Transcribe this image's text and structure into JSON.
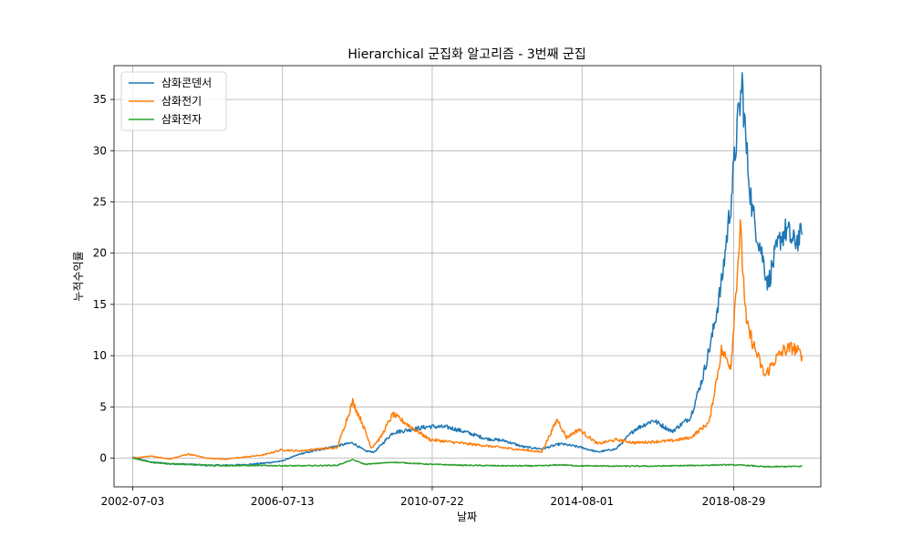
{
  "chart_data": {
    "type": "line",
    "title": "Hierarchical 군집화 알고리즘 - 3번째 군집",
    "xlabel": "날짜",
    "ylabel": "누적수익률",
    "x_start": "2002-07-03",
    "x_end": "2020-07-01",
    "xlim": [
      "2002-01-01",
      "2020-12-31"
    ],
    "ylim": [
      -2.8,
      38.3
    ],
    "x_ticks": [
      "2002-07-03",
      "2006-07-13",
      "2010-07-22",
      "2014-08-01",
      "2018-08-29"
    ],
    "y_ticks": [
      0,
      5,
      10,
      15,
      20,
      25,
      30,
      35
    ],
    "grid": true,
    "legend_position": "upper-left",
    "series": [
      {
        "name": "삼화콘덴서",
        "color": "#1f77b4",
        "points": [
          [
            "2002-07-03",
            0.1
          ],
          [
            "2003-01-01",
            -0.4
          ],
          [
            "2003-07-01",
            -0.55
          ],
          [
            "2004-01-01",
            -0.6
          ],
          [
            "2004-07-01",
            -0.7
          ],
          [
            "2005-01-01",
            -0.7
          ],
          [
            "2005-07-01",
            -0.65
          ],
          [
            "2006-01-01",
            -0.5
          ],
          [
            "2006-07-01",
            -0.3
          ],
          [
            "2007-01-01",
            0.4
          ],
          [
            "2007-07-01",
            0.8
          ],
          [
            "2008-01-01",
            1.2
          ],
          [
            "2008-06-01",
            1.5
          ],
          [
            "2008-10-01",
            0.7
          ],
          [
            "2009-01-01",
            0.6
          ],
          [
            "2009-07-01",
            2.5
          ],
          [
            "2010-01-01",
            2.8
          ],
          [
            "2010-07-01",
            3.1
          ],
          [
            "2011-01-01",
            3.0
          ],
          [
            "2011-07-01",
            2.5
          ],
          [
            "2012-01-01",
            1.9
          ],
          [
            "2012-07-01",
            1.7
          ],
          [
            "2013-01-01",
            1.1
          ],
          [
            "2013-07-01",
            0.9
          ],
          [
            "2014-01-01",
            1.4
          ],
          [
            "2014-07-01",
            1.1
          ],
          [
            "2015-01-01",
            0.6
          ],
          [
            "2015-07-01",
            0.9
          ],
          [
            "2016-01-01",
            2.8
          ],
          [
            "2016-07-01",
            3.7
          ],
          [
            "2017-01-01",
            2.6
          ],
          [
            "2017-07-01",
            4.0
          ],
          [
            "2017-11-01",
            8.0
          ],
          [
            "2018-02-01",
            12.0
          ],
          [
            "2018-05-01",
            17.0
          ],
          [
            "2018-08-01",
            25.0
          ],
          [
            "2018-10-01",
            32.0
          ],
          [
            "2018-11-20",
            36.5
          ],
          [
            "2019-01-01",
            30.0
          ],
          [
            "2019-03-01",
            24.0
          ],
          [
            "2019-06-01",
            20.0
          ],
          [
            "2019-08-01",
            17.0
          ],
          [
            "2019-10-01",
            19.5
          ],
          [
            "2019-12-01",
            21.5
          ],
          [
            "2020-02-01",
            22.3
          ],
          [
            "2020-04-01",
            21.0
          ],
          [
            "2020-07-01",
            21.8
          ]
        ]
      },
      {
        "name": "삼화전기",
        "color": "#ff7f0e",
        "points": [
          [
            "2002-07-03",
            0.0
          ],
          [
            "2003-01-01",
            0.2
          ],
          [
            "2003-07-01",
            -0.1
          ],
          [
            "2004-01-01",
            0.4
          ],
          [
            "2004-07-01",
            0.0
          ],
          [
            "2005-01-01",
            -0.1
          ],
          [
            "2005-07-01",
            0.1
          ],
          [
            "2006-01-01",
            0.3
          ],
          [
            "2006-07-01",
            0.8
          ],
          [
            "2007-01-01",
            0.7
          ],
          [
            "2007-07-01",
            0.9
          ],
          [
            "2008-01-01",
            1.0
          ],
          [
            "2008-06-01",
            5.5
          ],
          [
            "2008-09-01",
            3.5
          ],
          [
            "2008-12-01",
            1.0
          ],
          [
            "2009-03-01",
            2.0
          ],
          [
            "2009-07-01",
            4.3
          ],
          [
            "2010-01-01",
            3.0
          ],
          [
            "2010-07-01",
            1.8
          ],
          [
            "2011-01-01",
            1.6
          ],
          [
            "2011-07-01",
            1.4
          ],
          [
            "2012-01-01",
            1.2
          ],
          [
            "2012-07-01",
            1.0
          ],
          [
            "2013-01-01",
            0.8
          ],
          [
            "2013-07-01",
            0.6
          ],
          [
            "2013-12-01",
            3.8
          ],
          [
            "2014-03-01",
            2.0
          ],
          [
            "2014-07-01",
            2.8
          ],
          [
            "2015-01-01",
            1.4
          ],
          [
            "2015-07-01",
            1.8
          ],
          [
            "2016-01-01",
            1.5
          ],
          [
            "2016-07-01",
            1.6
          ],
          [
            "2017-01-01",
            1.7
          ],
          [
            "2017-07-01",
            2.0
          ],
          [
            "2018-01-01",
            3.5
          ],
          [
            "2018-05-01",
            10.5
          ],
          [
            "2018-08-01",
            9.0
          ],
          [
            "2018-11-01",
            22.5
          ],
          [
            "2019-01-01",
            13.0
          ],
          [
            "2019-04-01",
            10.5
          ],
          [
            "2019-07-01",
            8.0
          ],
          [
            "2019-10-01",
            9.5
          ],
          [
            "2020-01-01",
            10.5
          ],
          [
            "2020-04-01",
            10.8
          ],
          [
            "2020-07-01",
            10.0
          ]
        ]
      },
      {
        "name": "삼화전자",
        "color": "#2ca02c",
        "points": [
          [
            "2002-07-03",
            0.0
          ],
          [
            "2003-01-01",
            -0.4
          ],
          [
            "2003-07-01",
            -0.55
          ],
          [
            "2004-01-01",
            -0.6
          ],
          [
            "2004-07-01",
            -0.7
          ],
          [
            "2005-01-01",
            -0.72
          ],
          [
            "2006-01-01",
            -0.72
          ],
          [
            "2007-01-01",
            -0.75
          ],
          [
            "2008-01-01",
            -0.7
          ],
          [
            "2008-06-01",
            -0.15
          ],
          [
            "2008-10-01",
            -0.6
          ],
          [
            "2009-07-01",
            -0.4
          ],
          [
            "2010-07-01",
            -0.6
          ],
          [
            "2011-07-01",
            -0.7
          ],
          [
            "2012-07-01",
            -0.75
          ],
          [
            "2013-07-01",
            -0.75
          ],
          [
            "2014-01-01",
            -0.65
          ],
          [
            "2014-07-01",
            -0.75
          ],
          [
            "2015-07-01",
            -0.78
          ],
          [
            "2016-07-01",
            -0.78
          ],
          [
            "2017-07-01",
            -0.72
          ],
          [
            "2018-07-01",
            -0.65
          ],
          [
            "2019-01-01",
            -0.7
          ],
          [
            "2019-07-01",
            -0.85
          ],
          [
            "2020-07-01",
            -0.8
          ]
        ]
      }
    ]
  }
}
